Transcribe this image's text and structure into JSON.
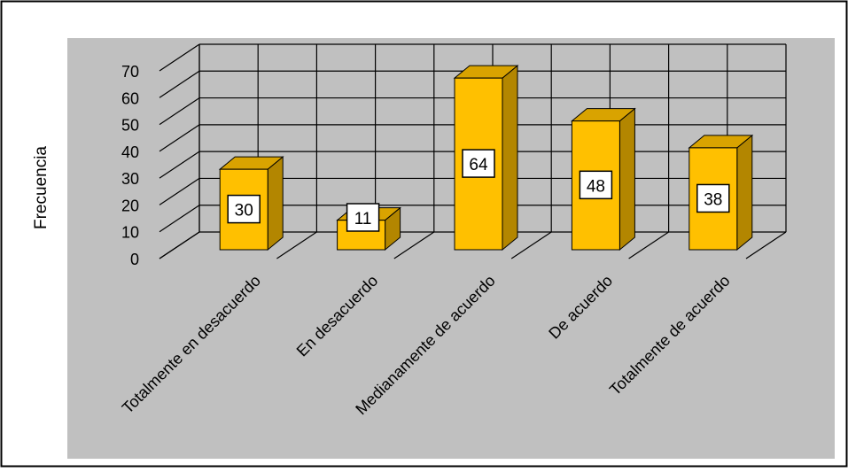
{
  "chart_data": {
    "type": "bar",
    "title": "",
    "ylabel": "Frecuencia",
    "xlabel": "",
    "categories": [
      "Totalmente en desacuerdo",
      "En desacuerdo",
      "Medianamente de acuerdo",
      "De acuerdo",
      "Totalmente de acuerdo"
    ],
    "values": [
      30,
      11,
      64,
      48,
      38
    ],
    "ylim": [
      0,
      70
    ],
    "yticks": [
      0,
      10,
      20,
      30,
      40,
      50,
      60,
      70
    ],
    "grid": true,
    "three_d": true,
    "colors": {
      "plot_bg": "#c0c0c0",
      "bar_front": "#ffc000",
      "bar_side": "#b38600",
      "bar_top": "#d9a300",
      "grid": "#000000",
      "label_box": "#ffffff"
    }
  }
}
